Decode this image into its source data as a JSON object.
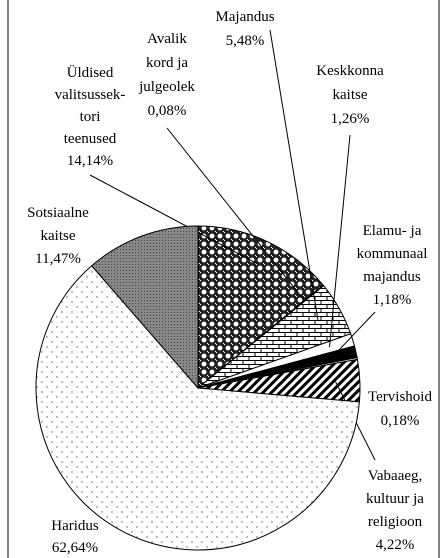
{
  "chart_data": {
    "type": "pie",
    "categories": [
      "Üldised\nvalitsussek-\ntori\nteenused",
      "Avalik\nkord ja\njulgeolek",
      "Majandus",
      "Keskkonna\nkaitse",
      "Elamu- ja\nkommunaal\nmajandus",
      "Tervishoid",
      "Vabaaeg,\nkultuur ja\nreligioon",
      "Haridus",
      "Sotsiaalne\nkaitse"
    ],
    "values": [
      14.14,
      0.08,
      5.48,
      1.26,
      1.18,
      0.18,
      4.22,
      62.64,
      11.47
    ],
    "value_labels": [
      "14,14%",
      "0,08%",
      "5,48%",
      "1,26%",
      "1,18%",
      "0,18%",
      "4,22%",
      "62,64%",
      "11,47%"
    ],
    "patterns": [
      "checker",
      "white",
      "brick",
      "white",
      "black",
      "white",
      "stripes",
      "dots",
      "gray"
    ]
  }
}
